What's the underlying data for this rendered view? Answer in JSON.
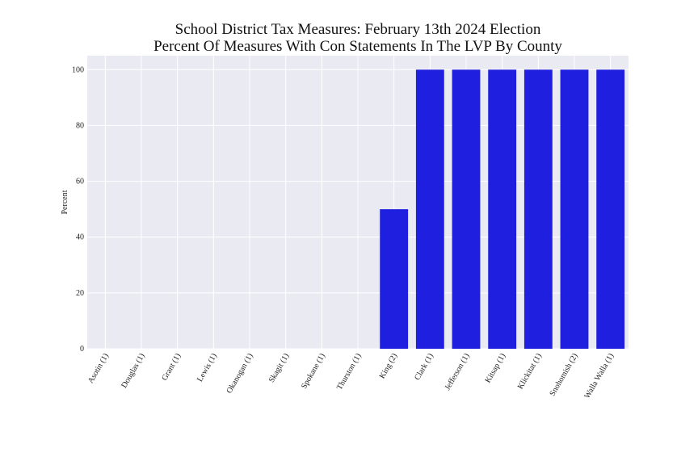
{
  "chart_data": {
    "type": "bar",
    "title": "School District Tax Measures: February 13th 2024 Election",
    "subtitle": "Percent Of Measures With Con Statements In The LVP By County",
    "xlabel": "",
    "ylabel": "Percent",
    "ylim": [
      0,
      105
    ],
    "yticks": [
      0,
      20,
      40,
      60,
      80,
      100
    ],
    "grid": true,
    "categories": [
      "Asotin (1)",
      "Douglas (1)",
      "Grant (1)",
      "Lewis (1)",
      "Okanogan (1)",
      "Skagit (1)",
      "Spokane (1)",
      "Thurston (1)",
      "King (2)",
      "Clark (1)",
      "Jefferson (1)",
      "Kitsap (1)",
      "Klickitat (1)",
      "Snohomish (2)",
      "Walla Walla (1)"
    ],
    "values": [
      0,
      0,
      0,
      0,
      0,
      0,
      0,
      0,
      50,
      100,
      100,
      100,
      100,
      100,
      100
    ],
    "colors": {
      "bar": "#1f1fe0",
      "plot_bg": "#eaeaf2",
      "grid": "#ffffff"
    }
  }
}
